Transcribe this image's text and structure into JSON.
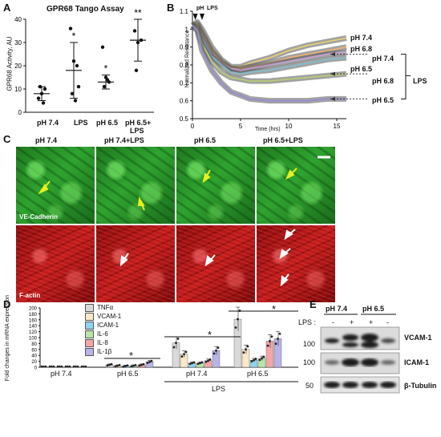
{
  "panels": {
    "A": {
      "letter": "A",
      "title": "GPR68 Tango Assay",
      "ylabel": "GPR68 Activity, AU",
      "yticks": [
        "0",
        "10",
        "20",
        "30",
        "40"
      ],
      "categories": [
        "pH 7.4",
        "LPS",
        "pH 6.5",
        "pH 6.5+",
        "LPS"
      ],
      "significance": [
        "",
        "*",
        "*",
        "**"
      ],
      "chart_data": {
        "type": "scatter",
        "categories": [
          "pH 7.4",
          "LPS",
          "pH 6.5",
          "pH 6.5+LPS"
        ],
        "ylim": [
          0,
          40
        ],
        "means": [
          8,
          18,
          13,
          31
        ],
        "sd": [
          3,
          12,
          3,
          9
        ],
        "points": [
          [
            6,
            8,
            10,
            11,
            4
          ],
          [
            36,
            22,
            20,
            8,
            5,
            11
          ],
          [
            28,
            15,
            13,
            11,
            14
          ],
          [
            35,
            30,
            31,
            18
          ]
        ]
      }
    },
    "B": {
      "letter": "B",
      "ylabel": "Normalized Resistance",
      "xlabel": "Time (hrs)",
      "yticks": [
        "0.5",
        "0.6",
        "0.7",
        "0.8",
        "0.9",
        "1",
        "1.1"
      ],
      "xticks": [
        "0",
        "5",
        "10",
        "15"
      ],
      "markers": [
        "pH",
        "LPS"
      ],
      "series_labels": [
        "pH 7.4",
        "pH 6.8",
        "pH 7.4",
        "pH 6.5",
        "pH 6.8",
        "pH 6.5"
      ],
      "group_label": "LPS",
      "chart_data": {
        "type": "line",
        "xlim": [
          0,
          16
        ],
        "ylim": [
          0.5,
          1.1
        ],
        "x": [
          0,
          0.5,
          1,
          2,
          3,
          4,
          5,
          6,
          8,
          10,
          12,
          14,
          16
        ],
        "series": [
          {
            "name": "pH 7.4",
            "color": "#e8d070",
            "values": [
              1.02,
              1.04,
              1.0,
              0.9,
              0.83,
              0.79,
              0.79,
              0.81,
              0.84,
              0.88,
              0.91,
              0.93,
              0.95
            ]
          },
          {
            "name": "pH 6.8",
            "color": "#f0b070",
            "values": [
              1.02,
              1.03,
              0.98,
              0.88,
              0.82,
              0.78,
              0.78,
              0.79,
              0.81,
              0.84,
              0.86,
              0.88,
              0.9
            ]
          },
          {
            "name": "pH 7.4",
            "color": "#c9a0d8",
            "values": [
              1.02,
              1.02,
              0.97,
              0.87,
              0.81,
              0.78,
              0.77,
              0.78,
              0.8,
              0.82,
              0.84,
              0.86,
              0.87
            ]
          },
          {
            "name": "pH 6.5",
            "color": "#80c0d0",
            "values": [
              1.02,
              1.01,
              0.95,
              0.85,
              0.8,
              0.76,
              0.75,
              0.76,
              0.77,
              0.79,
              0.81,
              0.83,
              0.84
            ]
          },
          {
            "name": "pH 6.8",
            "color": "#b8d070",
            "values": [
              1.02,
              1.0,
              0.92,
              0.82,
              0.76,
              0.73,
              0.72,
              0.71,
              0.71,
              0.72,
              0.73,
              0.74,
              0.75
            ]
          },
          {
            "name": "pH 6.5",
            "color": "#9a8ad8",
            "values": [
              1.02,
              0.99,
              0.88,
              0.77,
              0.7,
              0.65,
              0.63,
              0.61,
              0.6,
              0.6,
              0.6,
              0.61,
              0.61
            ]
          }
        ]
      }
    },
    "C": {
      "letter": "C",
      "columns": [
        "pH 7.4",
        "pH 7.4+LPS",
        "pH 6.5",
        "pH 6.5+LPS"
      ],
      "row_labels": [
        "VE-Cadherin",
        "F-actin"
      ]
    },
    "D": {
      "letter": "D",
      "ylabel": "Fold changes in mRNA expression",
      "yticks": [
        "0",
        "20",
        "40",
        "60",
        "80",
        "100",
        "120",
        "140",
        "160",
        "180",
        "200"
      ],
      "groups": [
        "pH 7.4",
        "pH 6.5",
        "pH 7.4",
        "pH 6.5"
      ],
      "lps_label": "LPS",
      "legend": [
        "TNFα",
        "VCAM-1",
        "ICAM-1",
        "IL-6",
        "IL-8",
        "IL-1β"
      ],
      "legend_colors": [
        "#d9d9d9",
        "#fbe8c8",
        "#8fd3f0",
        "#b8e6a8",
        "#f4a6a6",
        "#b8b4e8"
      ],
      "significance": [
        "*",
        "*",
        "*"
      ],
      "chart_data": {
        "type": "bar",
        "categories": [
          "pH 7.4",
          "pH 6.5",
          "pH 7.4+LPS",
          "pH 6.5+LPS"
        ],
        "ylim": [
          0,
          200
        ],
        "series": [
          {
            "name": "TNFα",
            "values": [
              1,
              8,
              82,
              162
            ]
          },
          {
            "name": "VCAM-1",
            "values": [
              1,
              5,
              44,
              60
            ]
          },
          {
            "name": "ICAM-1",
            "values": [
              1,
              4,
              14,
              24
            ]
          },
          {
            "name": "IL-6",
            "values": [
              1,
              5,
              14,
              30
            ]
          },
          {
            "name": "IL-8",
            "values": [
              1,
              8,
              22,
              88
            ]
          },
          {
            "name": "IL-1β",
            "values": [
              1,
              18,
              56,
              96
            ]
          }
        ]
      }
    },
    "E": {
      "letter": "E",
      "groups": [
        "pH 7.4",
        "pH 6.5"
      ],
      "lps_label": "LPS :",
      "lps_states": [
        "-",
        "+",
        "+",
        "-"
      ],
      "bands": [
        "VCAM-1",
        "ICAM-1",
        "β-Tubulin"
      ],
      "mw": [
        "100",
        "100",
        "50"
      ]
    }
  }
}
